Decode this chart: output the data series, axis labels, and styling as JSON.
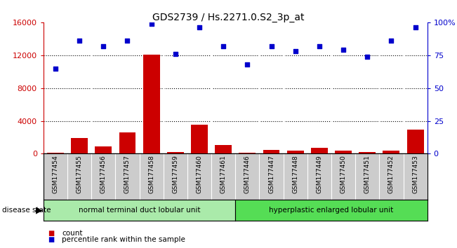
{
  "title": "GDS2739 / Hs.2271.0.S2_3p_at",
  "samples": [
    "GSM177454",
    "GSM177455",
    "GSM177456",
    "GSM177457",
    "GSM177458",
    "GSM177459",
    "GSM177460",
    "GSM177461",
    "GSM177446",
    "GSM177447",
    "GSM177448",
    "GSM177449",
    "GSM177450",
    "GSM177451",
    "GSM177452",
    "GSM177453"
  ],
  "counts": [
    100,
    1900,
    900,
    2600,
    12100,
    200,
    3500,
    1100,
    150,
    500,
    350,
    700,
    350,
    200,
    350,
    2900
  ],
  "percentiles": [
    65,
    86,
    82,
    86,
    99,
    76,
    96,
    82,
    68,
    82,
    78,
    82,
    79,
    74,
    86,
    96
  ],
  "group1_size": 8,
  "group2_size": 8,
  "group1_label": "normal terminal duct lobular unit",
  "group2_label": "hyperplastic enlarged lobular unit",
  "disease_state_label": "disease state",
  "ylim_left": [
    0,
    16000
  ],
  "ylim_right": [
    0,
    100
  ],
  "yticks_left": [
    0,
    4000,
    8000,
    12000,
    16000
  ],
  "yticks_right": [
    0,
    25,
    50,
    75,
    100
  ],
  "yticklabels_right": [
    "0",
    "25",
    "50",
    "75",
    "100%"
  ],
  "bar_color": "#cc0000",
  "dot_color": "#0000cc",
  "group1_color": "#aaeaaa",
  "group2_color": "#55dd55",
  "tick_area_color": "#cccccc",
  "legend_count_label": "count",
  "legend_pct_label": "percentile rank within the sample",
  "title_fontsize": 10,
  "axis_fontsize": 8,
  "label_fontsize": 8,
  "sample_fontsize": 6.5
}
